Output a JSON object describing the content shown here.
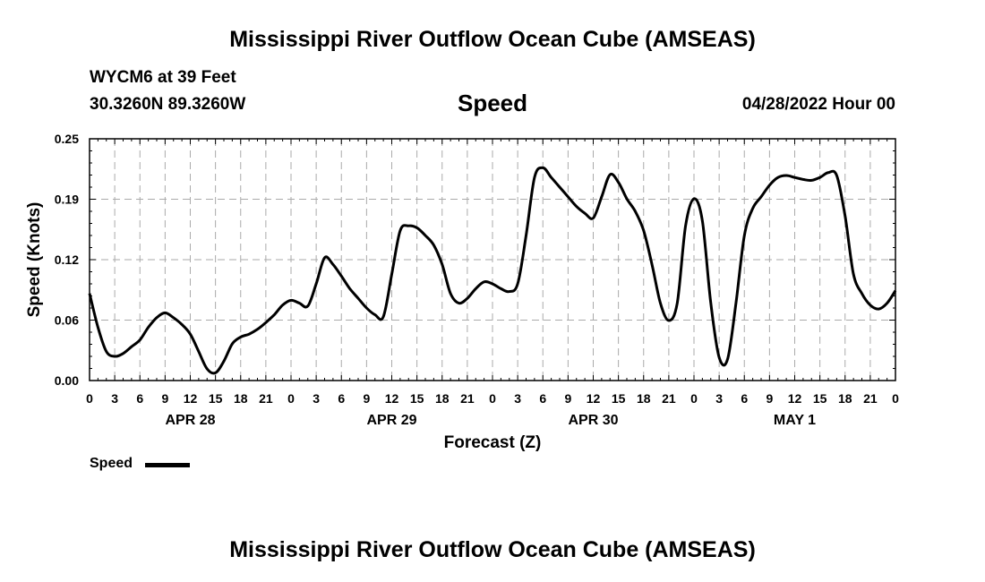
{
  "page": {
    "title_top": "Mississippi River Outflow Ocean Cube (AMSEAS)",
    "title_bottom": "Mississippi River Outflow Ocean Cube (AMSEAS)",
    "station": "WYCM6 at 39 Feet",
    "coords": "30.3260N  89.3260W",
    "subtitle": "Speed",
    "datetime": "04/28/2022 Hour 00"
  },
  "chart_data": {
    "type": "line",
    "title": "Speed",
    "xlabel": "Forecast (Z)",
    "ylabel": "Speed (Knots)",
    "ylim": [
      0,
      0.25
    ],
    "xlim": [
      0,
      96
    ],
    "x_unit": "hours from 04/28/2022 00Z",
    "x_ticks": [
      0,
      3,
      6,
      9,
      12,
      15,
      18,
      21,
      24,
      27,
      30,
      33,
      36,
      39,
      42,
      45,
      48,
      51,
      54,
      57,
      60,
      63,
      66,
      69,
      72,
      75,
      78,
      81,
      84,
      87,
      90,
      93,
      96
    ],
    "x_tick_labels": [
      "0",
      "3",
      "6",
      "9",
      "12",
      "15",
      "18",
      "21",
      "0",
      "3",
      "6",
      "9",
      "12",
      "15",
      "18",
      "21",
      "0",
      "3",
      "6",
      "9",
      "12",
      "15",
      "18",
      "21",
      "0",
      "3",
      "6",
      "9",
      "12",
      "15",
      "18",
      "21",
      "0"
    ],
    "y_ticks": [
      0,
      0.0625,
      0.125,
      0.1875,
      0.25
    ],
    "y_tick_labels": [
      "0.00",
      "0.06",
      "0.12",
      "0.19",
      "0.25"
    ],
    "day_labels": [
      {
        "label": "APR 28",
        "x": 12
      },
      {
        "label": "APR 29",
        "x": 36
      },
      {
        "label": "APR 30",
        "x": 60
      },
      {
        "label": "MAY 1",
        "x": 84
      }
    ],
    "grid": true,
    "legend": {
      "position": "bottom-left",
      "entries": [
        "Speed"
      ]
    },
    "series": [
      {
        "name": "Speed",
        "color": "#000000",
        "x": [
          0,
          1,
          2,
          3,
          4,
          5,
          6,
          7,
          8,
          9,
          10,
          11,
          12,
          13,
          14,
          15,
          16,
          17,
          18,
          19,
          20,
          21,
          22,
          23,
          24,
          25,
          26,
          27,
          28,
          29,
          30,
          31,
          32,
          33,
          34,
          35,
          36,
          37,
          38,
          39,
          40,
          41,
          42,
          43,
          44,
          45,
          46,
          47,
          48,
          49,
          50,
          51,
          52,
          53,
          54,
          55,
          56,
          57,
          58,
          59,
          60,
          61,
          62,
          63,
          64,
          65,
          66,
          67,
          68,
          69,
          70,
          71,
          72,
          73,
          74,
          75,
          76,
          77,
          78,
          79,
          80,
          81,
          82,
          83,
          84,
          85,
          86,
          87,
          88,
          89,
          90,
          91,
          92,
          93,
          94,
          95,
          96
        ],
        "values": [
          0.09,
          0.055,
          0.03,
          0.025,
          0.028,
          0.035,
          0.042,
          0.055,
          0.065,
          0.07,
          0.065,
          0.058,
          0.048,
          0.03,
          0.012,
          0.008,
          0.02,
          0.038,
          0.045,
          0.048,
          0.053,
          0.06,
          0.068,
          0.078,
          0.083,
          0.08,
          0.077,
          0.1,
          0.127,
          0.12,
          0.108,
          0.095,
          0.085,
          0.075,
          0.068,
          0.066,
          0.11,
          0.155,
          0.16,
          0.158,
          0.15,
          0.14,
          0.12,
          0.09,
          0.08,
          0.085,
          0.095,
          0.102,
          0.1,
          0.095,
          0.092,
          0.1,
          0.15,
          0.21,
          0.22,
          0.21,
          0.2,
          0.19,
          0.18,
          0.173,
          0.168,
          0.19,
          0.213,
          0.205,
          0.188,
          0.175,
          0.155,
          0.12,
          0.08,
          0.062,
          0.08,
          0.16,
          0.188,
          0.165,
          0.08,
          0.024,
          0.022,
          0.08,
          0.15,
          0.178,
          0.19,
          0.202,
          0.21,
          0.212,
          0.21,
          0.208,
          0.207,
          0.21,
          0.215,
          0.212,
          0.17,
          0.11,
          0.09,
          0.078,
          0.074,
          0.08,
          0.093
        ]
      }
    ]
  }
}
